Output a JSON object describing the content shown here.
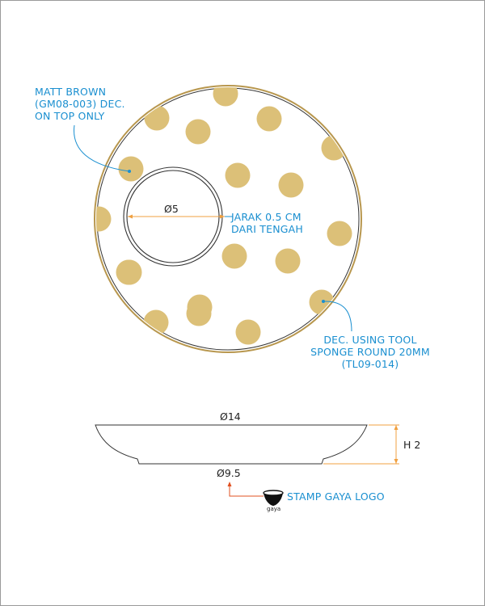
{
  "colors": {
    "dot": "#dcc078",
    "rim": "#b8974e",
    "callout": "#1a8fd0",
    "dimension": "#f0a040",
    "line": "#333333"
  },
  "top_view": {
    "dots_count": 19,
    "inner_diameter_label": "Ø5",
    "offset_note": [
      "JARAK 0.5 CM",
      "DARI TENGAH"
    ]
  },
  "annotations": {
    "decoration": [
      "MATT BROWN",
      "(GM08-003) DEC.",
      "ON TOP ONLY"
    ],
    "tool": [
      "DEC. USING TOOL",
      "SPONGE ROUND 20MM",
      "(TL09-014)"
    ]
  },
  "side_view": {
    "top_diameter": "Ø14",
    "height": "H 2",
    "base_diameter": "Ø9.5"
  },
  "stamp": {
    "label": "STAMP GAYA LOGO",
    "logo_text": "gaya"
  }
}
